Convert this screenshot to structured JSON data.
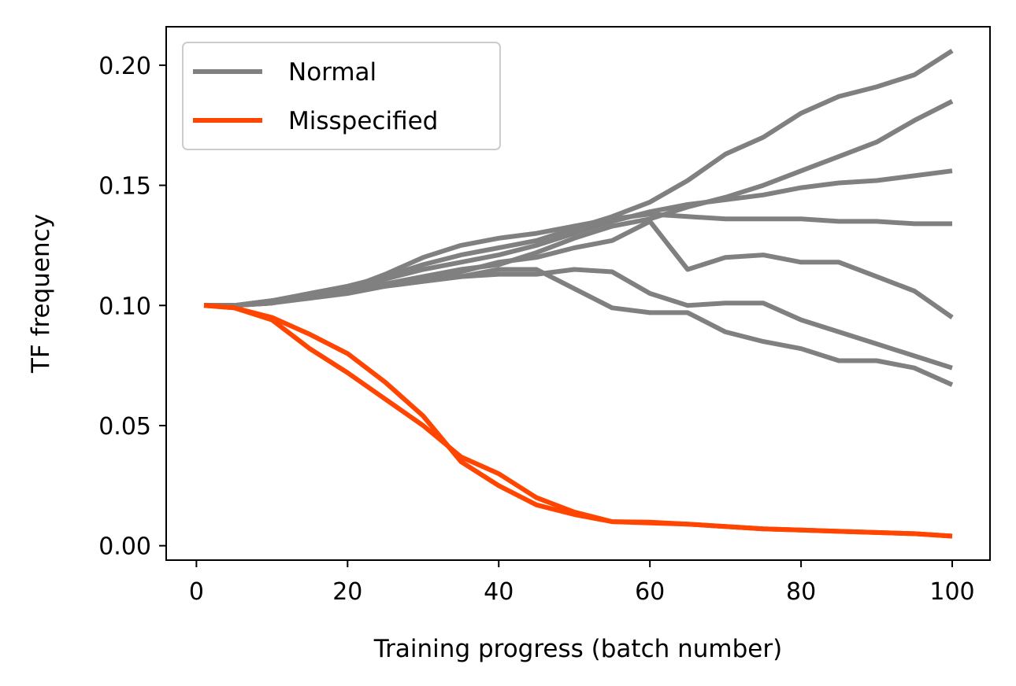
{
  "chart_data": {
    "type": "line",
    "title": "",
    "xlabel": "Training progress (batch number)",
    "ylabel": "TF frequency",
    "xlim": [
      -4,
      105
    ],
    "ylim": [
      -0.006,
      0.216
    ],
    "xticks": [
      0,
      20,
      40,
      60,
      80,
      100
    ],
    "yticks": [
      0.0,
      0.05,
      0.1,
      0.15,
      0.2
    ],
    "xtick_labels": [
      "0",
      "20",
      "40",
      "60",
      "80",
      "100"
    ],
    "ytick_labels": [
      "0.00",
      "0.05",
      "0.10",
      "0.15",
      "0.20"
    ],
    "grid": false,
    "legend_position": "top-left",
    "legend": [
      {
        "label": "Normal",
        "color": "#808080"
      },
      {
        "label": "Misspecified",
        "color": "#ff4500"
      }
    ],
    "x": [
      1,
      5,
      10,
      15,
      20,
      25,
      30,
      35,
      40,
      45,
      50,
      55,
      60,
      65,
      70,
      75,
      80,
      85,
      90,
      95,
      100
    ],
    "series": [
      {
        "name": "Normal",
        "group": "Normal",
        "color": "#808080",
        "values": [
          0.1,
          0.1,
          0.102,
          0.105,
          0.108,
          0.112,
          0.117,
          0.121,
          0.124,
          0.127,
          0.132,
          0.137,
          0.143,
          0.152,
          0.163,
          0.17,
          0.18,
          0.187,
          0.191,
          0.196,
          0.206
        ]
      },
      {
        "name": "Normal",
        "group": "Normal",
        "color": "#808080",
        "values": [
          0.1,
          0.1,
          0.101,
          0.104,
          0.106,
          0.109,
          0.112,
          0.115,
          0.117,
          0.122,
          0.128,
          0.133,
          0.136,
          0.141,
          0.145,
          0.15,
          0.156,
          0.162,
          0.168,
          0.177,
          0.185
        ]
      },
      {
        "name": "Normal",
        "group": "Normal",
        "color": "#808080",
        "values": [
          0.1,
          0.1,
          0.101,
          0.104,
          0.107,
          0.111,
          0.115,
          0.118,
          0.121,
          0.125,
          0.13,
          0.135,
          0.139,
          0.142,
          0.144,
          0.146,
          0.149,
          0.151,
          0.152,
          0.154,
          0.156
        ]
      },
      {
        "name": "Normal",
        "group": "Normal",
        "color": "#808080",
        "values": [
          0.1,
          0.1,
          0.102,
          0.104,
          0.107,
          0.113,
          0.12,
          0.125,
          0.128,
          0.13,
          0.133,
          0.136,
          0.138,
          0.137,
          0.136,
          0.136,
          0.136,
          0.135,
          0.135,
          0.134,
          0.134
        ]
      },
      {
        "name": "Normal",
        "group": "Normal",
        "color": "#808080",
        "values": [
          0.1,
          0.1,
          0.102,
          0.104,
          0.106,
          0.109,
          0.111,
          0.114,
          0.118,
          0.12,
          0.124,
          0.127,
          0.135,
          0.115,
          0.12,
          0.121,
          0.118,
          0.118,
          0.112,
          0.106,
          0.095
        ]
      },
      {
        "name": "Normal",
        "group": "Normal",
        "color": "#808080",
        "values": [
          0.1,
          0.1,
          0.101,
          0.104,
          0.106,
          0.108,
          0.11,
          0.112,
          0.113,
          0.113,
          0.115,
          0.114,
          0.105,
          0.1,
          0.101,
          0.101,
          0.094,
          0.089,
          0.084,
          0.079,
          0.074
        ]
      },
      {
        "name": "Normal",
        "group": "Normal",
        "color": "#808080",
        "values": [
          0.1,
          0.1,
          0.101,
          0.103,
          0.105,
          0.108,
          0.11,
          0.112,
          0.115,
          0.115,
          0.107,
          0.099,
          0.097,
          0.097,
          0.089,
          0.085,
          0.082,
          0.077,
          0.077,
          0.074,
          0.067
        ]
      },
      {
        "name": "Misspecified",
        "group": "Misspecified",
        "color": "#ff4500",
        "values": [
          0.1,
          0.099,
          0.095,
          0.088,
          0.08,
          0.068,
          0.054,
          0.035,
          0.025,
          0.017,
          0.013,
          0.01,
          0.0095,
          0.009,
          0.008,
          0.007,
          0.0065,
          0.006,
          0.0055,
          0.005,
          0.004
        ]
      },
      {
        "name": "Misspecified",
        "group": "Misspecified",
        "color": "#ff4500",
        "values": [
          0.1,
          0.099,
          0.094,
          0.082,
          0.072,
          0.061,
          0.05,
          0.037,
          0.03,
          0.02,
          0.014,
          0.01,
          0.0098,
          0.009,
          0.008,
          0.007,
          0.0065,
          0.006,
          0.0055,
          0.005,
          0.004
        ]
      }
    ]
  }
}
